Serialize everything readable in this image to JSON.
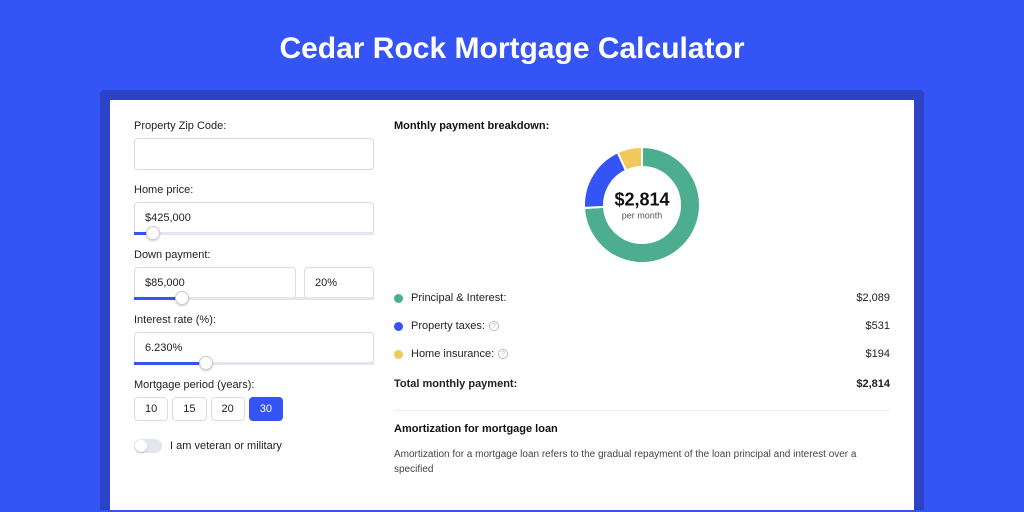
{
  "page_title": "Cedar Rock Mortgage Calculator",
  "colors": {
    "page_bg": "#3454f5",
    "shadow_bg": "#2c43c5",
    "card_bg": "#ffffff",
    "accent": "#3454f5",
    "principal": "#4cad8f",
    "taxes": "#3454f5",
    "insurance": "#f0c95a"
  },
  "form": {
    "zip_label": "Property Zip Code:",
    "zip_value": "",
    "home_price_label": "Home price:",
    "home_price_value": "$425,000",
    "home_price_slider_percent": 8,
    "down_payment_label": "Down payment:",
    "down_payment_value": "$85,000",
    "down_payment_pct": "20%",
    "down_payment_slider_percent": 20,
    "rate_label": "Interest rate (%):",
    "rate_value": "6.230%",
    "rate_slider_percent": 30,
    "period_label": "Mortgage period (years):",
    "period_options": [
      "10",
      "15",
      "20",
      "30"
    ],
    "period_selected": "30",
    "veteran_label": "I am veteran or military"
  },
  "breakdown": {
    "title": "Monthly payment breakdown:",
    "donut": {
      "amount": "$2,814",
      "sub": "per month",
      "slices": [
        {
          "label": "Principal & Interest",
          "value": 2089,
          "percent": 74.2,
          "color": "#4cad8f"
        },
        {
          "label": "Property taxes",
          "value": 531,
          "percent": 18.9,
          "color": "#3454f5"
        },
        {
          "label": "Home insurance",
          "value": 194,
          "percent": 6.9,
          "color": "#f0c95a"
        }
      ]
    },
    "rows": [
      {
        "dot": "#4cad8f",
        "label": "Principal & Interest:",
        "info": false,
        "value": "$2,089"
      },
      {
        "dot": "#3454f5",
        "label": "Property taxes:",
        "info": true,
        "value": "$531"
      },
      {
        "dot": "#f0c95a",
        "label": "Home insurance:",
        "info": true,
        "value": "$194"
      }
    ],
    "total_label": "Total monthly payment:",
    "total_value": "$2,814"
  },
  "amort": {
    "title": "Amortization for mortgage loan",
    "body": "Amortization for a mortgage loan refers to the gradual repayment of the loan principal and interest over a specified"
  }
}
